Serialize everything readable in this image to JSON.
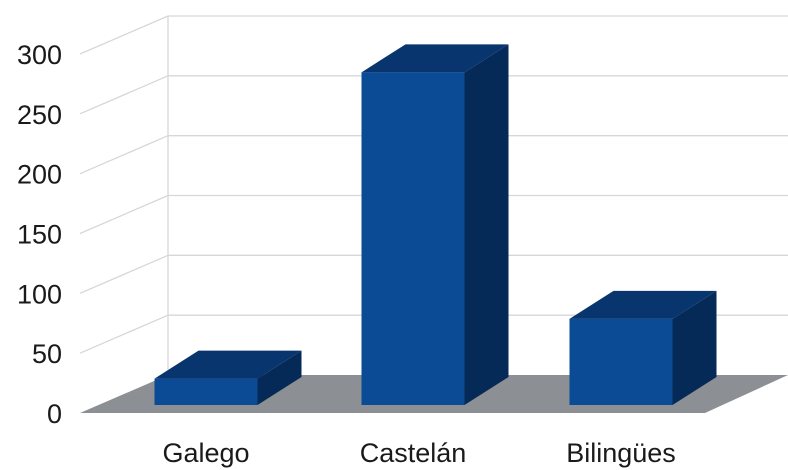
{
  "chart_data": {
    "type": "bar",
    "style": "3d",
    "categories": [
      "Galego",
      "Castelán",
      "Bilingües"
    ],
    "values": [
      22,
      278,
      72
    ],
    "yticks": [
      "0",
      "50",
      "100",
      "150",
      "200",
      "250",
      "300"
    ],
    "ylim": [
      0,
      300
    ],
    "title": "",
    "xlabel": "",
    "ylabel": "",
    "grid": true,
    "legend": "none",
    "colors": {
      "bar_front": "#0b4a94",
      "bar_top": "#08356e",
      "bar_side": "#052a57",
      "floor": "#8c8f93",
      "grid": "#d7d7d7",
      "text": "#1a1a1a"
    }
  }
}
